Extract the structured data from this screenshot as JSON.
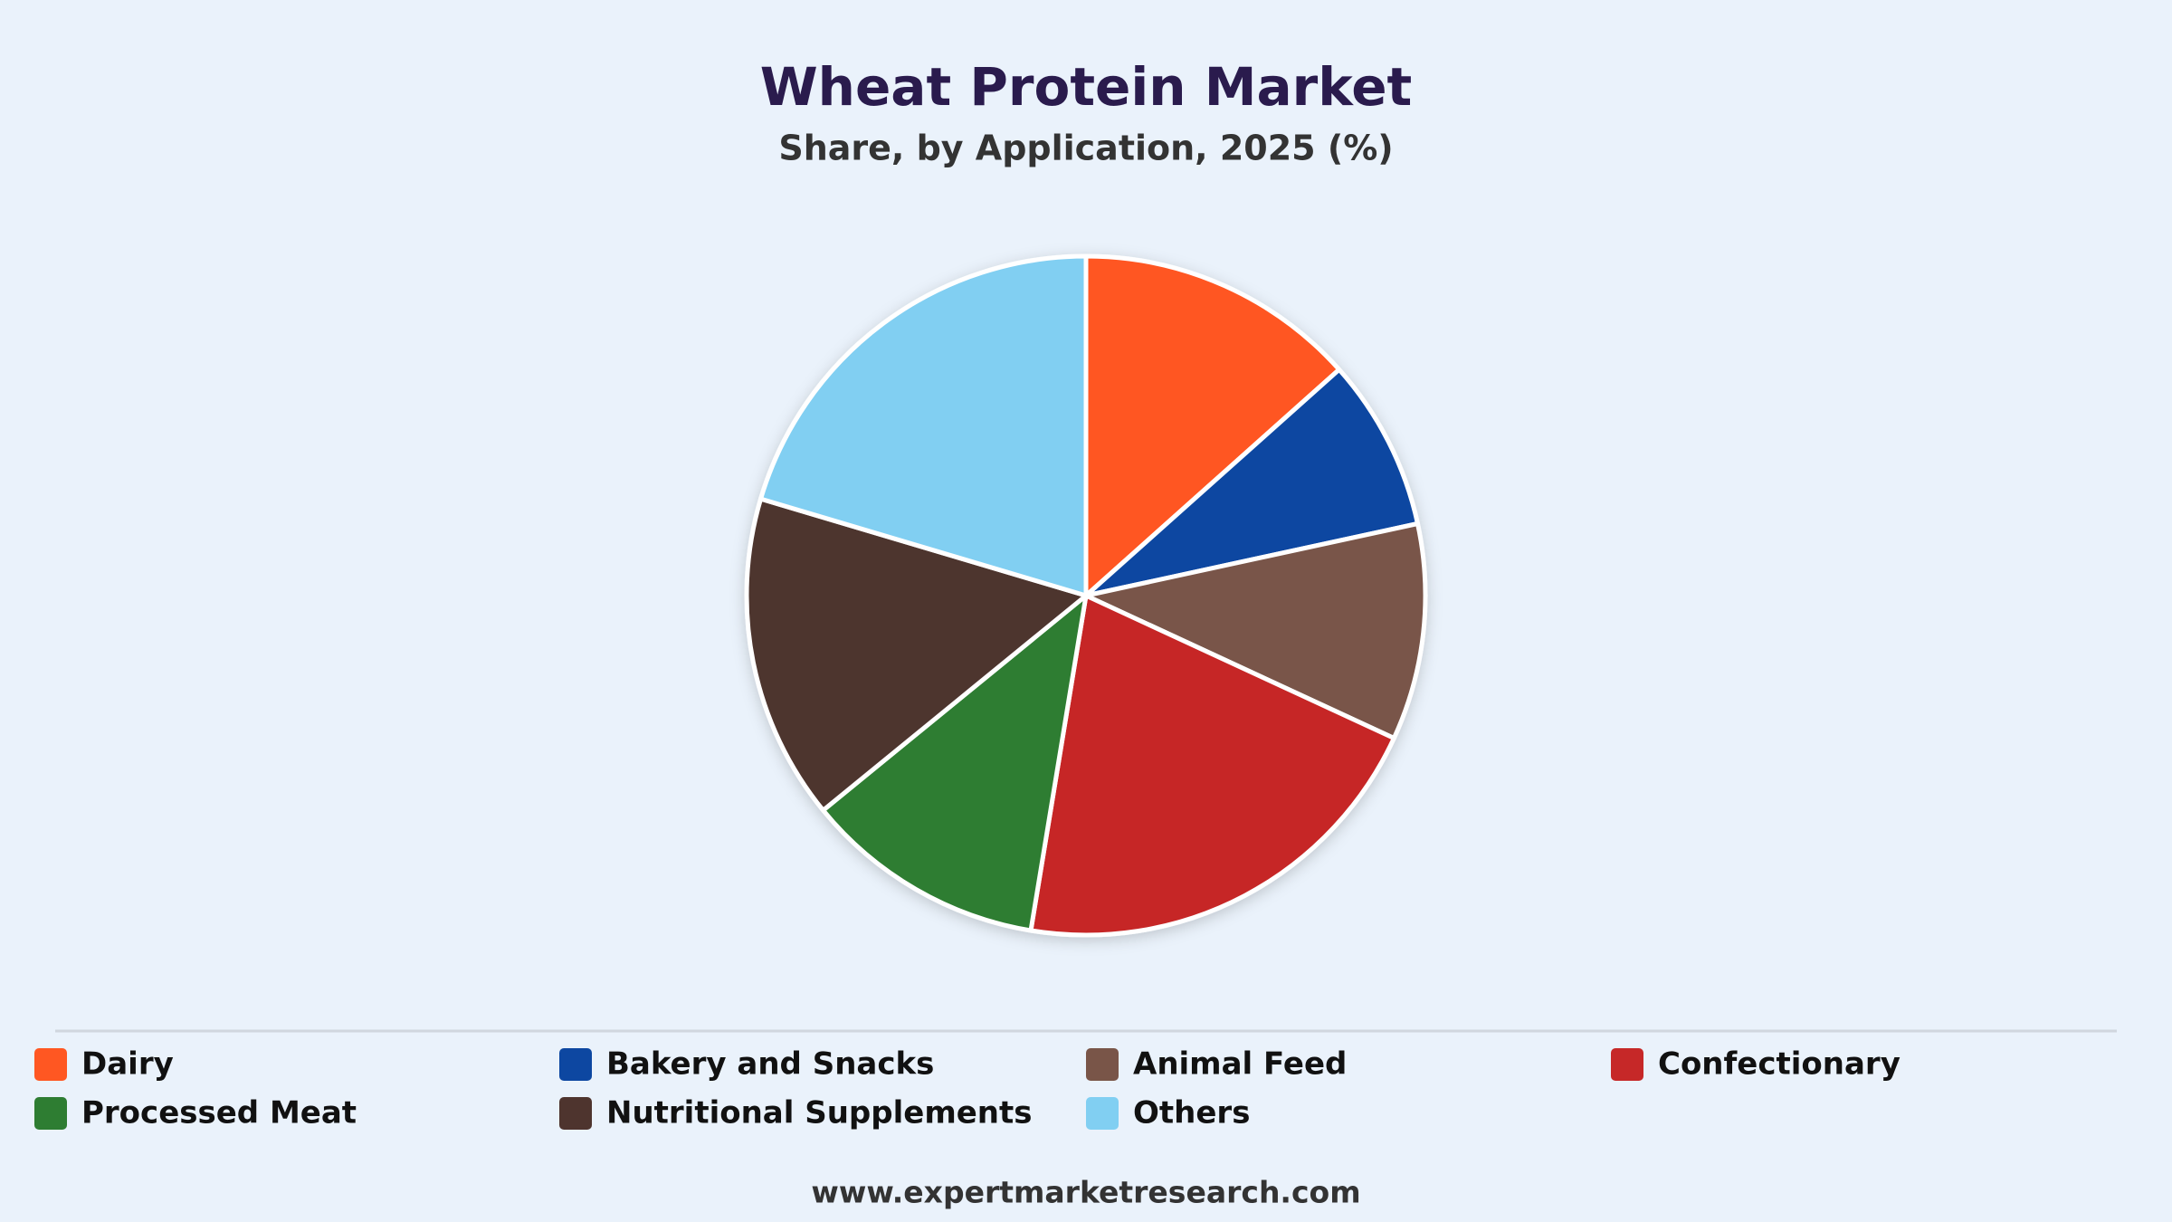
{
  "chart_data": {
    "type": "pie",
    "title": "Wheat Protein Market",
    "subtitle": "Share, by Application, 2025 (%)",
    "categories": [
      "Dairy",
      "Bakery and Snacks",
      "Animal Feed",
      "Confectionary",
      "Processed Meat",
      "Nutritional Supplements",
      "Others"
    ],
    "values": [
      13.4,
      8.2,
      10.3,
      20.7,
      11.5,
      15.5,
      20.4
    ],
    "colors": [
      "#ff5722",
      "#0d47a1",
      "#795548",
      "#c62828",
      "#2e7d32",
      "#4e342e",
      "#81cff2"
    ],
    "legend": "bottom",
    "footer": "www.expertmarketresearch.com"
  }
}
